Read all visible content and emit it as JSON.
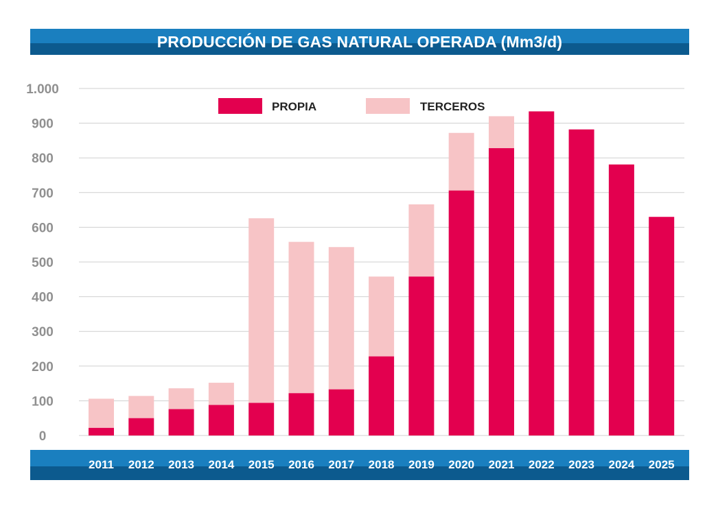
{
  "colors": {
    "propia": "#e3004f",
    "terceros": "#f7c4c6",
    "grid": "#cfcfcf",
    "banner_light": "#1a7fbf",
    "banner_dark": "#0c5a8e"
  },
  "chart_data": {
    "type": "bar",
    "stacked": true,
    "title": "PRODUCCIÓN DE GAS NATURAL OPERADA (Mm3/d)",
    "categories": [
      "2011",
      "2012",
      "2013",
      "2014",
      "2015",
      "2016",
      "2017",
      "2018",
      "2019",
      "2020",
      "2021",
      "2022",
      "2023",
      "2024",
      "2025"
    ],
    "series": [
      {
        "name": "PROPIA",
        "values": [
          22,
          50,
          76,
          88,
          94,
          122,
          133,
          228,
          458,
          706,
          828,
          934,
          882,
          781,
          630
        ]
      },
      {
        "name": "TERCEROS",
        "values": [
          84,
          64,
          60,
          64,
          532,
          436,
          410,
          230,
          208,
          166,
          92,
          0,
          0,
          0,
          0
        ]
      }
    ],
    "ylim": [
      0,
      1000
    ],
    "yticks": [
      0,
      100,
      200,
      300,
      400,
      500,
      600,
      700,
      800,
      900,
      1000
    ],
    "ytick_labels": [
      "0",
      "100",
      "200",
      "300",
      "400",
      "500",
      "600",
      "700",
      "800",
      "900",
      "1.000"
    ],
    "grid": true,
    "legend": [
      "PROPIA",
      "TERCEROS"
    ],
    "legend_position": "top-center",
    "xlabel": "",
    "ylabel": ""
  }
}
